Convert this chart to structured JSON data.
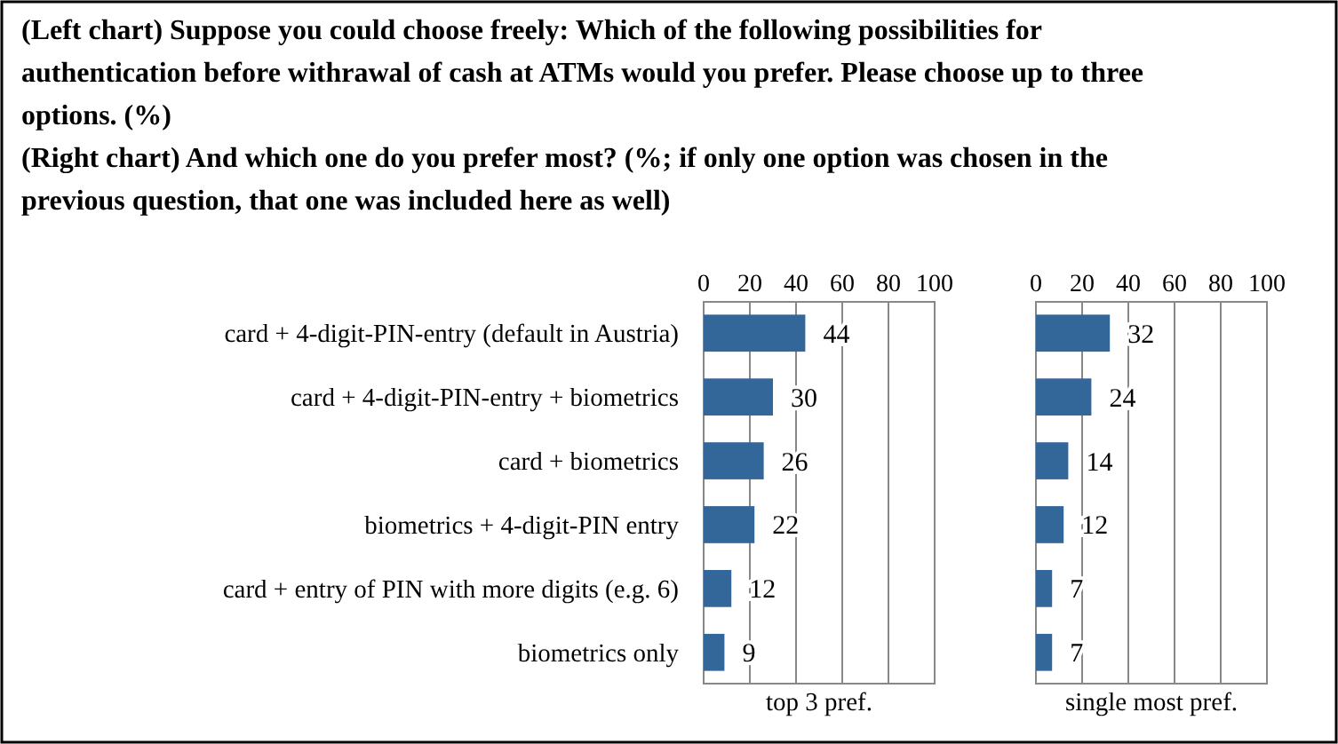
{
  "chart_data": [
    {
      "type": "bar",
      "orientation": "horizontal",
      "title": "(Left chart) Suppose you could choose freely: Which of the following possibilities for authentication before withrawal of cash at ATMs would you prefer. Please choose up to three options. (%)",
      "categories": [
        "card + 4-digit-PIN-entry (default in Austria)",
        "card + 4-digit-PIN-entry + biometrics",
        "card + biometrics",
        "biometrics + 4-digit-PIN entry",
        "card + entry of PIN with more digits (e.g. 6)",
        "biometrics only"
      ],
      "values": [
        44,
        30,
        26,
        22,
        12,
        9
      ],
      "color": "#336699",
      "xlim": [
        0,
        100
      ],
      "xticks": [
        0,
        20,
        40,
        60,
        80,
        100
      ],
      "xlabel": "top 3 pref.",
      "grid": "x",
      "data_labels": true
    },
    {
      "type": "bar",
      "orientation": "horizontal",
      "title": "(Right chart) And which one do you prefer most? (%; if only one option was chosen in the previous question, that one was included  here as well)",
      "categories": [
        null,
        null,
        null,
        null,
        null,
        null
      ],
      "values": [
        32,
        24,
        14,
        12,
        7,
        7
      ],
      "color": "#336699",
      "xlim": [
        0,
        100
      ],
      "xticks": [
        0,
        20,
        40,
        60,
        80,
        100
      ],
      "xlabel": "single most pref.",
      "grid": "x",
      "data_labels": true,
      "tick_labels": "x"
    }
  ]
}
